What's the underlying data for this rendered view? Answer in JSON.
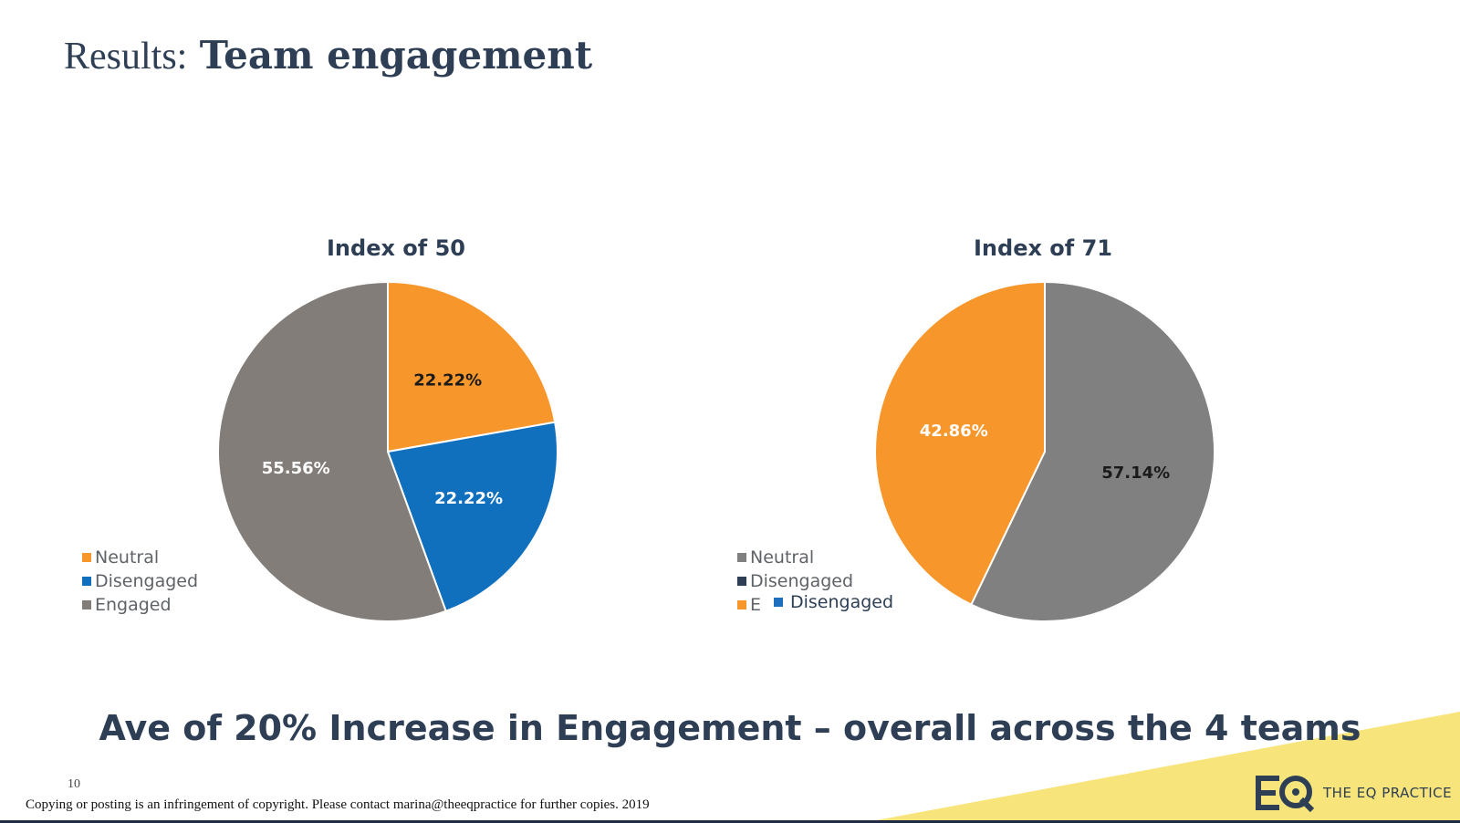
{
  "slide": {
    "title_prefix": "Results:",
    "title_main": "Team engagement",
    "headline": "Ave of 20% Increase in Engagement – overall across the 4 teams",
    "page_number": "10",
    "copyright": "Copying or posting is an infringement of copyright. Please contact  marina@theeqpractice for further copies. 2019",
    "logo_text": "THE EQ PRACTICE",
    "accent_yellow": "#f7e47a",
    "dark_blue": "#2e3f55"
  },
  "chart_data": [
    {
      "type": "pie",
      "title": "Index of 50",
      "categories": [
        "Neutral",
        "Disengaged",
        "Engaged"
      ],
      "values": [
        22.22,
        22.22,
        55.56
      ],
      "labels": [
        "22.22%",
        "22.22%",
        "55.56%"
      ],
      "colors": [
        "#f7962b",
        "#1170be",
        "#827d79"
      ],
      "label_colors": [
        "#1a1a1a",
        "#ffffff",
        "#ffffff"
      ],
      "legend": [
        "Neutral",
        "Disengaged",
        "Engaged"
      ],
      "legend_colors": [
        "#f7962b",
        "#1170be",
        "#827d79"
      ],
      "legend_position": "bottom-left"
    },
    {
      "type": "pie",
      "title": "Index of 71",
      "categories": [
        "Engaged",
        "Neutral"
      ],
      "values": [
        57.14,
        42.86
      ],
      "labels": [
        "57.14%",
        "42.86%"
      ],
      "colors": [
        "#808080",
        "#f7962b"
      ],
      "label_colors": [
        "#1a1a1a",
        "#ffffff"
      ],
      "legend": [
        "Neutral",
        "Disengaged",
        "E"
      ],
      "legend_colors": [
        "#808080",
        "#2e3f55",
        "#f7962b"
      ],
      "legend_position": "bottom-left",
      "extra_legend": {
        "label": "Disengaged",
        "color": "#1f6fbf"
      }
    }
  ]
}
